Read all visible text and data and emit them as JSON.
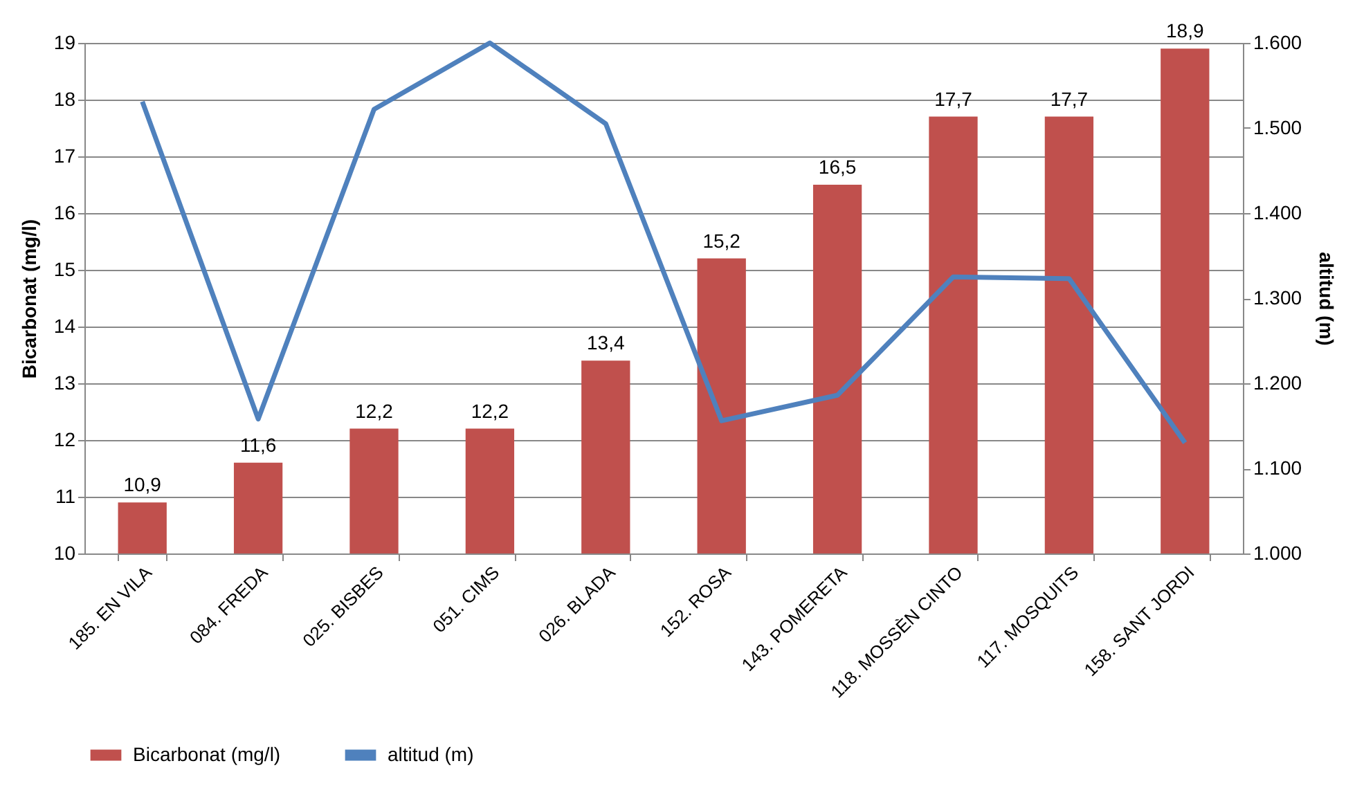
{
  "chart_data": {
    "type": "bar",
    "categories": [
      "185. EN VILA",
      "084. FREDA",
      "025. BISBES",
      "051. CIMS",
      "026. BLADA",
      "152.  ROSA",
      "143.  POMERETA",
      "118.  MOSSÈN CINTO",
      "117.  MOSQUITS",
      "158. SANT JORDI"
    ],
    "series": [
      {
        "name": "Bicarbonat (mg/l)",
        "color": "#c0504d",
        "values": [
          10.9,
          11.6,
          12.2,
          12.2,
          13.4,
          15.2,
          16.5,
          17.7,
          17.7,
          18.9
        ],
        "value_labels": [
          "10,9",
          "11,6",
          "12,2",
          "12,2",
          "13,4",
          "15,2",
          "16,5",
          "17,7",
          "17,7",
          "18,9"
        ]
      },
      {
        "name": "altitud (m)",
        "type": "line",
        "axis": "y2",
        "color": "#4f81bd",
        "values": [
          1531,
          1158,
          1522,
          1600,
          1505,
          1156,
          1186,
          1325,
          1323,
          1130
        ]
      }
    ],
    "ylabel": "Bicarbonat (mg/l)",
    "y2label": "altitud (m)",
    "ylim": [
      10,
      19
    ],
    "yticks": [
      10,
      11,
      12,
      13,
      14,
      15,
      16,
      17,
      18,
      19
    ],
    "y2lim": [
      1000,
      1600
    ],
    "y2ticks": [
      {
        "value": 1000,
        "label": "1.000"
      },
      {
        "value": 1100,
        "label": "1.100"
      },
      {
        "value": 1200,
        "label": "1.200"
      },
      {
        "value": 1300,
        "label": "1.300"
      },
      {
        "value": 1400,
        "label": "1.400"
      },
      {
        "value": 1500,
        "label": "1.500"
      },
      {
        "value": 1600,
        "label": "1.600"
      }
    ],
    "grid": "y",
    "legend": "bottom"
  }
}
